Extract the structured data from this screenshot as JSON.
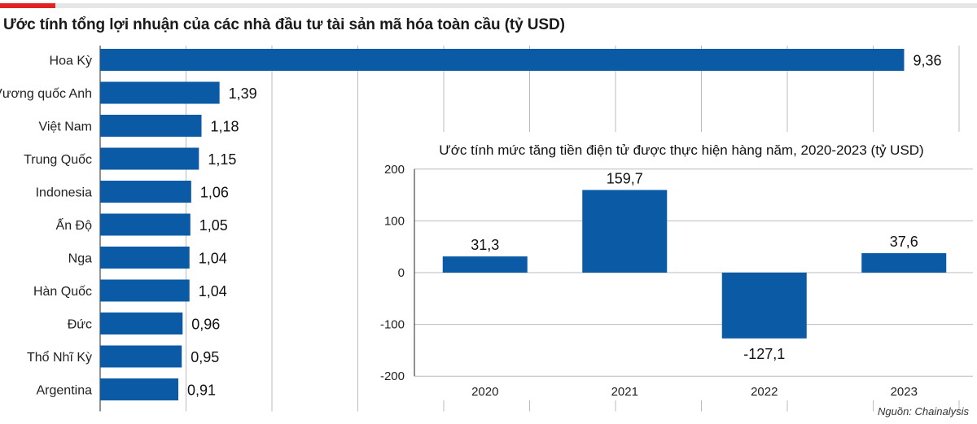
{
  "header": {
    "title": "Ước tính tổng lợi nhuận của các nhà đầu tư tài sản mã hóa toàn cầu (tỷ USD)",
    "source": "Nguồn: Chainalysis"
  },
  "colors": {
    "bar": "#0a5aa6",
    "accent": "#e02424",
    "rule": "#e6e6e6"
  },
  "chart_data": [
    {
      "type": "bar",
      "orientation": "horizontal",
      "title": "Ước tính tổng lợi nhuận của các nhà đầu tư tài sản mã hóa toàn cầu (tỷ USD)",
      "categories": [
        "Hoa Kỳ",
        "Vương quốc Anh",
        "Việt Nam",
        "Trung Quốc",
        "Indonesia",
        "Ấn Độ",
        "Nga",
        "Hàn Quốc",
        "Đức",
        "Thổ Nhĩ Kỳ",
        "Argentina"
      ],
      "values": [
        9.36,
        1.39,
        1.18,
        1.15,
        1.06,
        1.05,
        1.04,
        1.04,
        0.96,
        0.95,
        0.91
      ],
      "value_labels": [
        "9,36",
        "1,39",
        "1,18",
        "1,15",
        "1,06",
        "1,05",
        "1,04",
        "1,04",
        "0,96",
        "0,95",
        "0,91"
      ],
      "xlim": [
        0,
        10
      ],
      "grid": true
    },
    {
      "type": "bar",
      "orientation": "vertical",
      "title": "Ước tính mức tăng tiền điện tử được thực hiện hàng năm, 2020-2023 (tỷ USD)",
      "categories": [
        "2020",
        "2021",
        "2022",
        "2023"
      ],
      "values": [
        31.3,
        159.7,
        -127.1,
        37.6
      ],
      "value_labels": [
        "31,3",
        "159,7",
        "-127,1",
        "37,6"
      ],
      "ylim": [
        -200,
        200
      ],
      "yticks": [
        200,
        100,
        0,
        -100,
        -200
      ],
      "ytick_labels": [
        "200",
        "100",
        "0",
        "-100",
        "-200"
      ],
      "grid": true
    }
  ]
}
